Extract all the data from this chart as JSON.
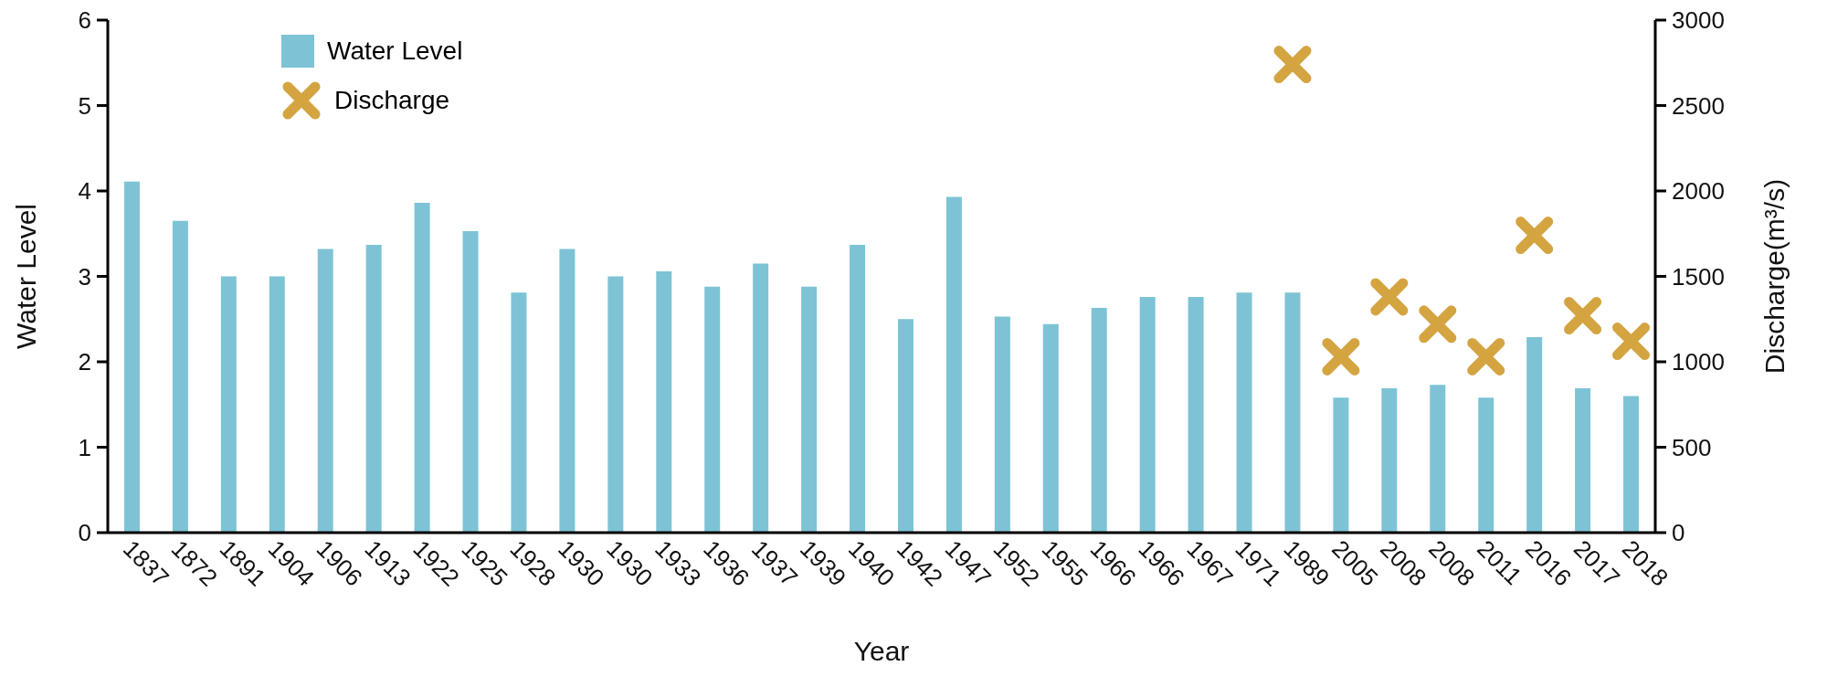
{
  "chart_data": {
    "type": "bar",
    "xlabel": "Year",
    "ylabel": "Water Level",
    "y2label": "Discharge(m³/s)",
    "categories": [
      "1837",
      "1872",
      "1891",
      "1904",
      "1906",
      "1913",
      "1922",
      "1925",
      "1928",
      "1930",
      "1930",
      "1933",
      "1936",
      "1937",
      "1939",
      "1940",
      "1942",
      "1947",
      "1952",
      "1955",
      "1966",
      "1966",
      "1967",
      "1971",
      "1989",
      "2005",
      "2008",
      "2008",
      "2011",
      "2016",
      "2017",
      "2018"
    ],
    "series": [
      {
        "name": "Water Level",
        "color": "#7dc3d5",
        "values": [
          4.11,
          3.65,
          3.0,
          3.0,
          3.32,
          3.37,
          3.86,
          3.53,
          2.81,
          3.32,
          3.0,
          3.06,
          2.88,
          3.15,
          2.88,
          3.37,
          2.5,
          3.93,
          2.53,
          2.44,
          2.63,
          2.76,
          2.76,
          2.81,
          2.81,
          1.58,
          1.69,
          1.73,
          1.58,
          2.29,
          1.69,
          1.6
        ]
      },
      {
        "name": "Discharge",
        "type": "scatter",
        "axis": "y2",
        "marker": "cross",
        "color": "#d4a441",
        "values": [
          null,
          null,
          null,
          null,
          null,
          null,
          null,
          null,
          null,
          null,
          null,
          null,
          null,
          null,
          null,
          null,
          null,
          null,
          null,
          null,
          null,
          null,
          null,
          null,
          2740,
          1030,
          1380,
          1220,
          1030,
          1740,
          1270,
          1120
        ]
      }
    ],
    "ylim": [
      0,
      6
    ],
    "yticks": [
      0,
      1,
      2,
      3,
      4,
      5,
      6
    ],
    "y2lim": [
      0,
      3000
    ],
    "y2ticks": [
      0,
      500,
      1000,
      1500,
      2000,
      2500,
      3000
    ],
    "grid": false,
    "legend": "top left"
  }
}
